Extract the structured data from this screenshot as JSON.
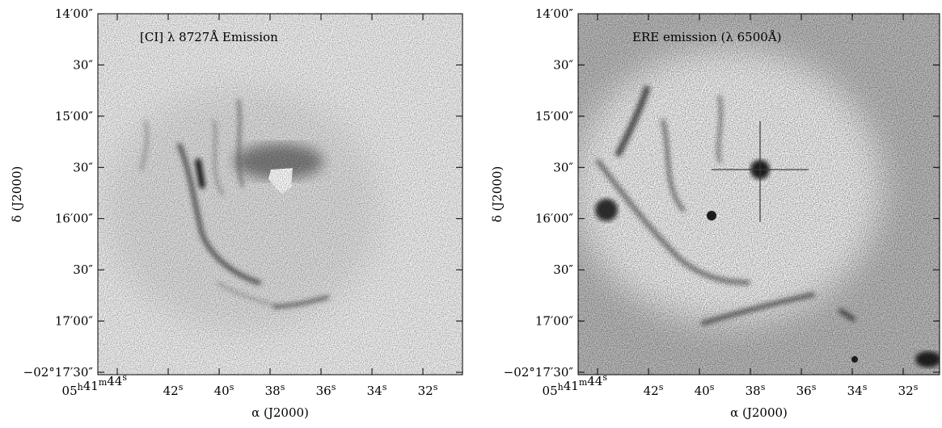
{
  "panels": [
    {
      "title": "[CI] λ 8727Å Emission",
      "xlabel": "α (J2000)",
      "ylabel": "δ (J2000)",
      "yticks": [
        "14′00″",
        "30″",
        "15′00″",
        "30″",
        "16′00″",
        "30″",
        "17′00″",
        "−02°17′30″"
      ],
      "xticks": [
        "05h41m44s",
        "42s",
        "40s",
        "38s",
        "36s",
        "34s",
        "32s"
      ]
    },
    {
      "title": "ERE emission (λ 6500Å)",
      "xlabel": "α (J2000)",
      "ylabel": "δ (J2000)",
      "yticks": [
        "14′00″",
        "30″",
        "15′00″",
        "30″",
        "16′00″",
        "30″",
        "17′00″",
        "−02°17′30″"
      ],
      "xticks": [
        "05h41m44s",
        "42s",
        "40s",
        "38s",
        "36s",
        "34s",
        "32s"
      ]
    }
  ]
}
